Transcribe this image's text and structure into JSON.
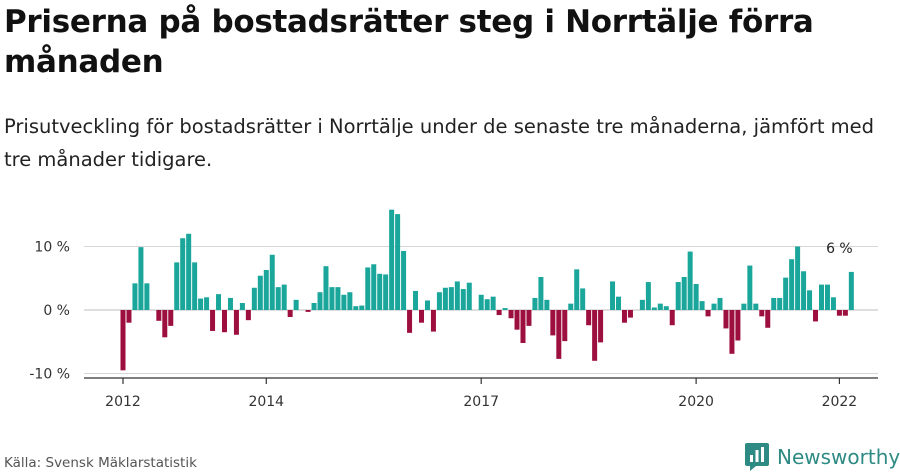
{
  "header": {
    "title": "Priserna på bostadsrätter steg i Norrtälje förra månaden",
    "subtitle": "Prisutveckling för bostadsrätter i Norrtälje under de senaste tre månaderna, jämfört med tre månader tidigare."
  },
  "footer": {
    "source": "Källa: Svensk Mäklarstatistik",
    "brand": "Newsworthy"
  },
  "colors": {
    "positive": "#1aa69a",
    "negative": "#9c0f3e",
    "axis": "#333333",
    "grid": "#d6d6d6",
    "brand": "#2e8b84"
  },
  "chart_data": {
    "type": "bar",
    "title": "Priserna på bostadsrätter steg i Norrtälje förra månaden",
    "xlabel": "",
    "ylabel": "",
    "x_start": "2012-01",
    "ylim": [
      -11,
      17
    ],
    "y_ticks": [
      {
        "value": 10,
        "label": "10 %"
      },
      {
        "value": 0,
        "label": "0 %"
      },
      {
        "value": -10,
        "label": "-10 %"
      }
    ],
    "x_ticks": [
      {
        "index": 0,
        "label": "2012"
      },
      {
        "index": 24,
        "label": "2014"
      },
      {
        "index": 60,
        "label": "2017"
      },
      {
        "index": 96,
        "label": "2020"
      },
      {
        "index": 120,
        "label": "2022"
      }
    ],
    "annotation": {
      "index": 120,
      "label": "6 %"
    },
    "values": [
      -9.5,
      -2,
      4.2,
      9.9,
      4.2,
      0,
      -1.7,
      -4.3,
      -2.5,
      7.5,
      11.3,
      12,
      7.5,
      1.8,
      2,
      -3.3,
      2.5,
      -3.5,
      1.9,
      -3.9,
      1.1,
      -1.6,
      3.5,
      5.4,
      6.3,
      8.7,
      3.6,
      4,
      -1.1,
      1.6,
      0,
      -0.3,
      1.1,
      2.8,
      6.9,
      3.6,
      3.6,
      2.4,
      2.8,
      0.6,
      0.7,
      6.7,
      7.2,
      5.7,
      5.6,
      15.8,
      15.1,
      9.3,
      -3.6,
      3,
      -2,
      1.5,
      -3.4,
      2.8,
      3.5,
      3.6,
      4.5,
      3.3,
      4.3,
      0,
      2.4,
      1.7,
      2.1,
      -0.8,
      0.3,
      -1.3,
      -3.1,
      -5.2,
      -2.5,
      1.9,
      5.2,
      1.6,
      -4,
      -7.7,
      -4.9,
      1,
      6.4,
      3.4,
      -2.4,
      -8,
      -5.1,
      0,
      4.5,
      2.1,
      -2,
      -1.2,
      0,
      1.6,
      4.4,
      0.4,
      1,
      0.6,
      -2.4,
      4.4,
      5.2,
      9.2,
      4.1,
      1.4,
      -1,
      1,
      1.9,
      -2.9,
      -6.9,
      -4.8,
      1,
      7,
      1,
      -1,
      -2.8,
      1.9,
      1.9,
      5.1,
      8,
      10,
      6.1,
      3.1,
      -1.8,
      4,
      4,
      2,
      -0.9,
      -0.9,
      6
    ]
  }
}
